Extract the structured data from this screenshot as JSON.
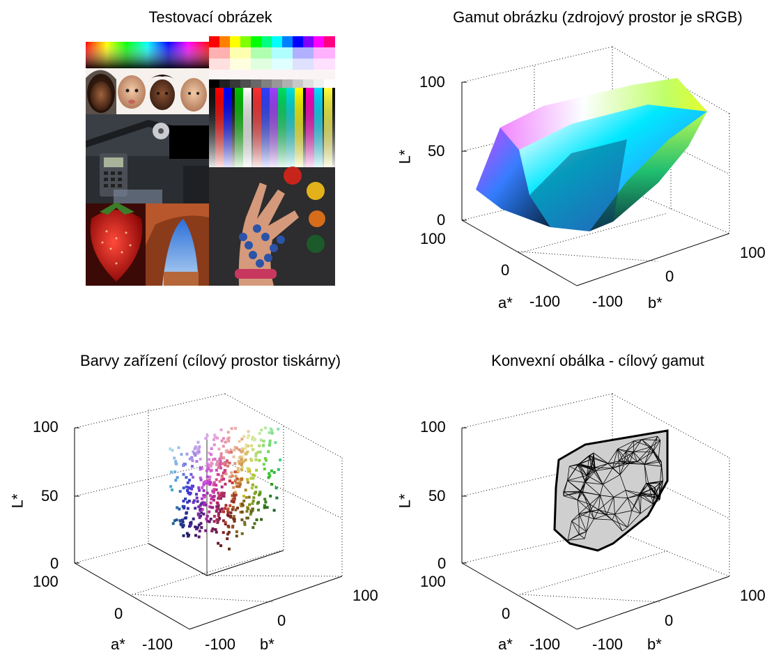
{
  "panels": {
    "test_image": {
      "title": "Testovací obrázek"
    },
    "image_gamut": {
      "title": "Gamut obrázku (zdrojový prostor je sRGB)"
    },
    "device_colors": {
      "title": "Barvy zařízení (cílový prostor tiskárny)"
    },
    "hull": {
      "title": "Konvexní obálka - cílový gamut"
    }
  },
  "axes": {
    "l_label": "L*",
    "a_label": "a*",
    "b_label": "b*",
    "l_ticks": [
      "0",
      "50",
      "100"
    ],
    "a_ticks": [
      "100",
      "0",
      "-100"
    ],
    "b_ticks": [
      "-100",
      "0",
      "100"
    ]
  },
  "chart_data": [
    {
      "type": "scatter",
      "title": "Gamut obrázku (zdrojový prostor je sRGB)",
      "xlabel": "a*",
      "ylabel": "b*",
      "zlabel": "L*",
      "xlim": [
        -100,
        100
      ],
      "ylim": [
        -100,
        100
      ],
      "zlim": [
        0,
        100
      ],
      "grid": true,
      "series": [
        {
          "points": [
            {
              "a": 80,
              "b": -100,
              "L": 60
            },
            {
              "a": 80,
              "b": -70,
              "L": 40
            },
            {
              "a": 60,
              "b": -100,
              "L": 32
            },
            {
              "a": 0,
              "b": -40,
              "L": 10
            },
            {
              "a": -40,
              "b": 100,
              "L": 90
            },
            {
              "a": -70,
              "b": 80,
              "L": 90
            },
            {
              "a": -20,
              "b": 10,
              "L": 50
            }
          ]
        }
      ]
    },
    {
      "type": "scatter",
      "title": "Barvy zařízení (cílový prostor tiskárny)",
      "xlabel": "a*",
      "ylabel": "b*",
      "zlabel": "L*",
      "xlim": [
        -100,
        100
      ],
      "ylim": [
        -100,
        100
      ],
      "zlim": [
        0,
        100
      ],
      "grid": true,
      "series": [
        {
          "points": [
            {
              "a": 60,
              "b": -40,
              "L": 70
            },
            {
              "a": 50,
              "b": -50,
              "L": 40
            },
            {
              "a": 10,
              "b": -20,
              "L": 20
            },
            {
              "a": -30,
              "b": 90,
              "L": 90
            },
            {
              "a": -30,
              "b": 60,
              "L": 60
            },
            {
              "a": -40,
              "b": 40,
              "L": 40
            },
            {
              "a": -20,
              "b": 0,
              "L": 30
            }
          ]
        }
      ]
    },
    {
      "type": "surface",
      "title": "Konvexní obálka - cílový gamut",
      "xlabel": "a*",
      "ylabel": "b*",
      "zlabel": "L*",
      "xlim": [
        -100,
        100
      ],
      "ylim": [
        -100,
        100
      ],
      "zlim": [
        0,
        100
      ],
      "grid": true
    }
  ]
}
